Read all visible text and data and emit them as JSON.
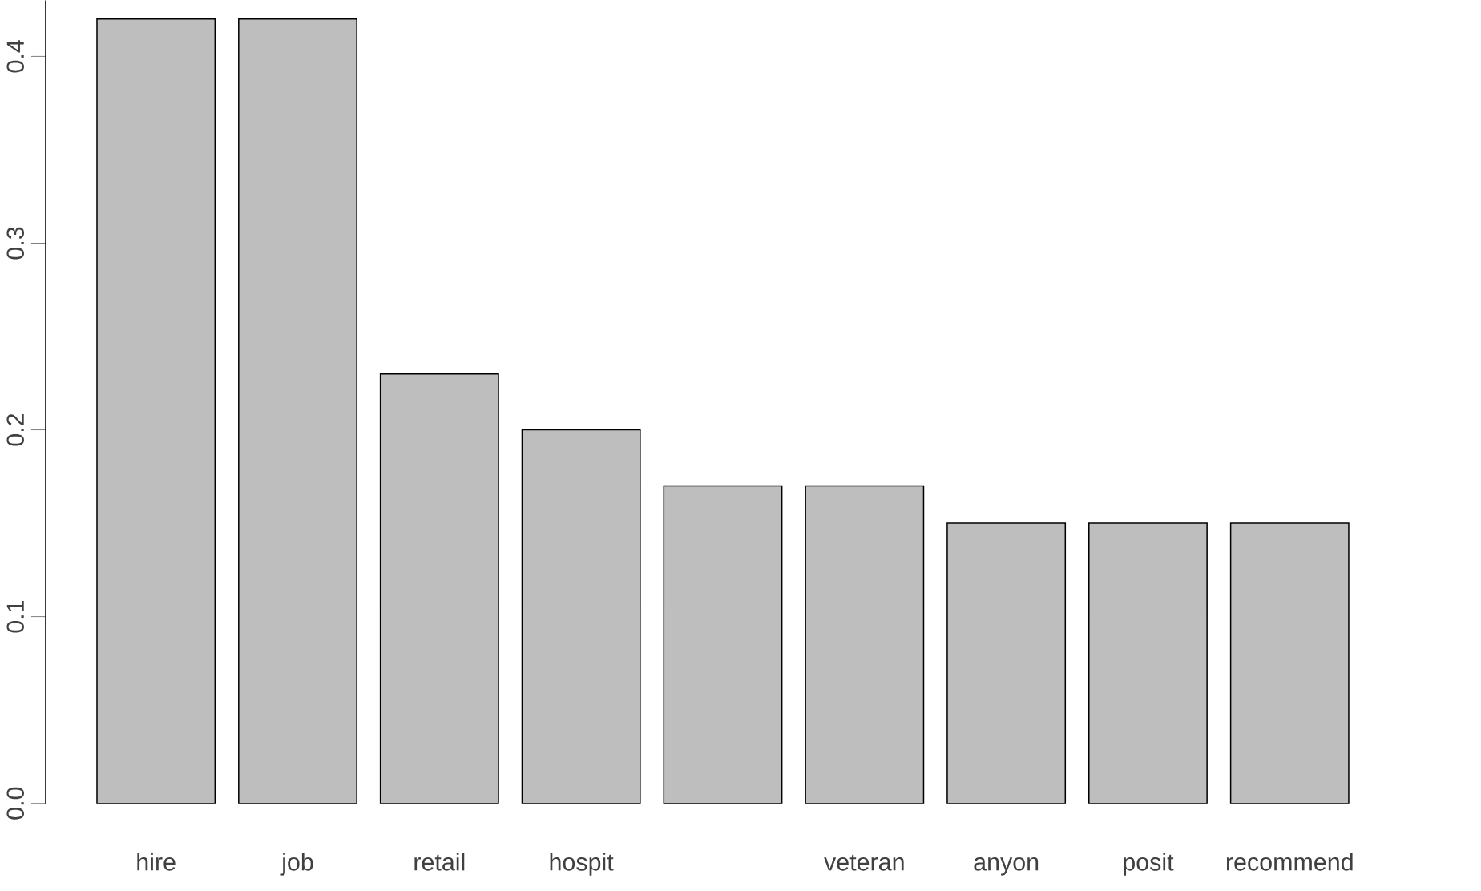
{
  "chart_data": {
    "type": "bar",
    "categories": [
      "hire",
      "job",
      "retail",
      "hospit",
      null,
      "veteran",
      "anyon",
      "posit",
      "recommend"
    ],
    "values": [
      0.42,
      0.42,
      0.23,
      0.2,
      0.17,
      0.17,
      0.15,
      0.15,
      0.15
    ],
    "color": "#bebebe",
    "ylim": [
      0,
      0.43
    ],
    "yticks": [
      {
        "value": 0,
        "label": "0.0"
      },
      0.1,
      0.2,
      0.3,
      0.4
    ]
  }
}
